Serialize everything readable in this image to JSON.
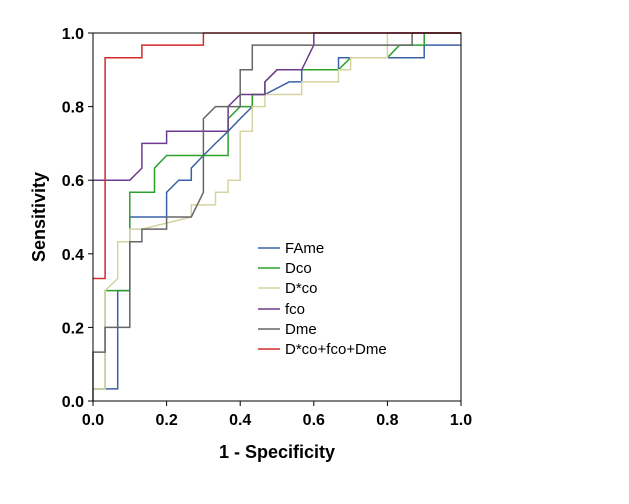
{
  "chart_data": {
    "type": "line",
    "title": "",
    "xlabel": "1 - Specificity",
    "ylabel": "Sensitivity",
    "xlim": [
      0,
      1
    ],
    "ylim": [
      0,
      1
    ],
    "xticks": [
      "0.0",
      "0.2",
      "0.4",
      "0.6",
      "0.8",
      "1.0"
    ],
    "yticks": [
      "0.0",
      "0.2",
      "0.4",
      "0.6",
      "0.8",
      "1.0"
    ],
    "grid": false,
    "legend_position": "center",
    "series": [
      {
        "name": "FAme",
        "color": "#3b62a8",
        "points": [
          [
            0,
            0.033
          ],
          [
            0.067,
            0.033
          ],
          [
            0.067,
            0.3
          ],
          [
            0.1,
            0.3
          ],
          [
            0.1,
            0.5
          ],
          [
            0.2,
            0.5
          ],
          [
            0.2,
            0.567
          ],
          [
            0.233,
            0.6
          ],
          [
            0.267,
            0.6
          ],
          [
            0.267,
            0.633
          ],
          [
            0.3,
            0.667
          ],
          [
            0.333,
            0.7
          ],
          [
            0.367,
            0.733
          ],
          [
            0.4,
            0.767
          ],
          [
            0.433,
            0.8
          ],
          [
            0.433,
            0.833
          ],
          [
            0.467,
            0.833
          ],
          [
            0.533,
            0.867
          ],
          [
            0.567,
            0.867
          ],
          [
            0.567,
            0.9
          ],
          [
            0.667,
            0.9
          ],
          [
            0.667,
            0.933
          ],
          [
            0.9,
            0.933
          ],
          [
            0.9,
            0.967
          ],
          [
            1.0,
            0.967
          ]
        ]
      },
      {
        "name": "Dco",
        "color": "#2ba02b",
        "points": [
          [
            0,
            0.033
          ],
          [
            0.033,
            0.033
          ],
          [
            0.033,
            0.3
          ],
          [
            0.1,
            0.3
          ],
          [
            0.1,
            0.567
          ],
          [
            0.167,
            0.567
          ],
          [
            0.167,
            0.633
          ],
          [
            0.2,
            0.667
          ],
          [
            0.367,
            0.667
          ],
          [
            0.367,
            0.767
          ],
          [
            0.4,
            0.8
          ],
          [
            0.433,
            0.8
          ],
          [
            0.433,
            0.833
          ],
          [
            0.467,
            0.833
          ],
          [
            0.467,
            0.867
          ],
          [
            0.5,
            0.9
          ],
          [
            0.667,
            0.9
          ],
          [
            0.7,
            0.933
          ],
          [
            0.8,
            0.933
          ],
          [
            0.833,
            0.967
          ],
          [
            0.9,
            0.967
          ],
          [
            0.9,
            1.0
          ],
          [
            1.0,
            1.0
          ]
        ]
      },
      {
        "name": "D*co",
        "color": "#d6d3a3",
        "points": [
          [
            0,
            0.033
          ],
          [
            0.033,
            0.033
          ],
          [
            0.033,
            0.3
          ],
          [
            0.067,
            0.333
          ],
          [
            0.067,
            0.433
          ],
          [
            0.1,
            0.433
          ],
          [
            0.1,
            0.467
          ],
          [
            0.133,
            0.467
          ],
          [
            0.267,
            0.5
          ],
          [
            0.267,
            0.533
          ],
          [
            0.333,
            0.533
          ],
          [
            0.333,
            0.567
          ],
          [
            0.367,
            0.567
          ],
          [
            0.367,
            0.6
          ],
          [
            0.4,
            0.6
          ],
          [
            0.4,
            0.733
          ],
          [
            0.433,
            0.733
          ],
          [
            0.433,
            0.8
          ],
          [
            0.467,
            0.8
          ],
          [
            0.467,
            0.833
          ],
          [
            0.567,
            0.833
          ],
          [
            0.567,
            0.867
          ],
          [
            0.667,
            0.867
          ],
          [
            0.667,
            0.9
          ],
          [
            0.7,
            0.9
          ],
          [
            0.7,
            0.933
          ],
          [
            0.8,
            0.933
          ],
          [
            0.8,
            1.0
          ],
          [
            1.0,
            1.0
          ]
        ]
      },
      {
        "name": "fco",
        "color": "#6f3a8f",
        "points": [
          [
            0,
            0.6
          ],
          [
            0.1,
            0.6
          ],
          [
            0.133,
            0.633
          ],
          [
            0.133,
            0.7
          ],
          [
            0.2,
            0.7
          ],
          [
            0.2,
            0.733
          ],
          [
            0.367,
            0.733
          ],
          [
            0.367,
            0.8
          ],
          [
            0.4,
            0.833
          ],
          [
            0.467,
            0.833
          ],
          [
            0.467,
            0.867
          ],
          [
            0.5,
            0.9
          ],
          [
            0.567,
            0.9
          ],
          [
            0.6,
            0.967
          ],
          [
            0.6,
            1.0
          ],
          [
            1.0,
            1.0
          ]
        ]
      },
      {
        "name": "Dme",
        "color": "#666666",
        "points": [
          [
            0,
            0.0
          ],
          [
            0,
            0.133
          ],
          [
            0.033,
            0.133
          ],
          [
            0.033,
            0.2
          ],
          [
            0.1,
            0.2
          ],
          [
            0.1,
            0.433
          ],
          [
            0.133,
            0.433
          ],
          [
            0.133,
            0.467
          ],
          [
            0.2,
            0.467
          ],
          [
            0.2,
            0.5
          ],
          [
            0.267,
            0.5
          ],
          [
            0.3,
            0.567
          ],
          [
            0.3,
            0.767
          ],
          [
            0.333,
            0.8
          ],
          [
            0.4,
            0.8
          ],
          [
            0.4,
            0.9
          ],
          [
            0.433,
            0.9
          ],
          [
            0.433,
            0.967
          ],
          [
            0.833,
            0.967
          ],
          [
            0.867,
            0.967
          ],
          [
            0.867,
            1.0
          ],
          [
            1.0,
            1.0
          ]
        ]
      },
      {
        "name": "D*co+fco+Dme",
        "color": "#d42b2b",
        "points": [
          [
            0,
            0.333
          ],
          [
            0.033,
            0.333
          ],
          [
            0.033,
            0.933
          ],
          [
            0.133,
            0.933
          ],
          [
            0.133,
            0.967
          ],
          [
            0.3,
            0.967
          ],
          [
            0.3,
            1.0
          ],
          [
            1.0,
            1.0
          ]
        ]
      }
    ]
  }
}
